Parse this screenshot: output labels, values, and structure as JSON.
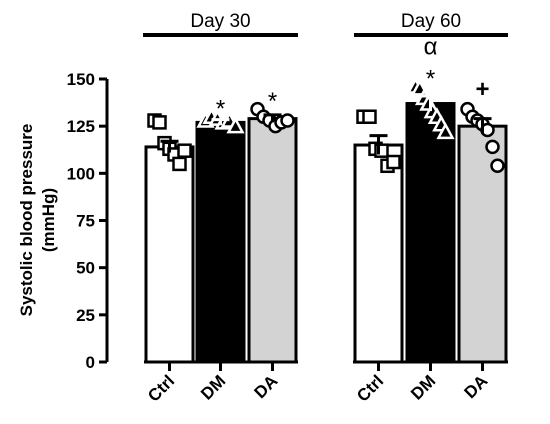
{
  "chart_data": {
    "type": "bar",
    "ylabel_line1": "Systolic blood pressure",
    "ylabel_line2": "(mmHg)",
    "ylim": [
      0,
      150
    ],
    "yticks": [
      0,
      25,
      50,
      75,
      100,
      125,
      150
    ],
    "groups": [
      {
        "name": "Day 30",
        "bars": [
          {
            "category": "Ctrl",
            "value": 114,
            "sem": 3,
            "fill": "#ffffff",
            "marker": "square",
            "points": [
              128,
              127,
              116,
              113,
              110,
              105,
              112
            ],
            "annotations": []
          },
          {
            "category": "DM",
            "value": 127,
            "sem": 1.5,
            "fill": "#000000",
            "marker": "triangle",
            "points": [
              128,
              130,
              129,
              127,
              128,
              125
            ],
            "annotations": [
              "*"
            ]
          },
          {
            "category": "DA",
            "value": 129,
            "sem": 2,
            "fill": "#d3d3d3",
            "marker": "circle",
            "points": [
              134,
              130,
              128,
              125,
              127,
              128
            ],
            "annotations": [
              "*"
            ]
          }
        ]
      },
      {
        "name": "Day 60",
        "bars": [
          {
            "category": "Ctrl",
            "value": 115,
            "sem": 5,
            "fill": "#ffffff",
            "marker": "square",
            "points": [
              130,
              130,
              113,
              112,
              104,
              106
            ],
            "annotations": []
          },
          {
            "category": "DM",
            "value": 137,
            "sem": 4,
            "fill": "#000000",
            "marker": "triangle",
            "points": [
              146,
              145,
              140,
              137,
              133,
              130,
              126,
              122
            ],
            "annotations": [
              "*",
              "α"
            ]
          },
          {
            "category": "DA",
            "value": 125,
            "sem": 4,
            "fill": "#d3d3d3",
            "marker": "circle",
            "points": [
              134,
              130,
              128,
              126,
              123,
              114,
              104
            ],
            "annotations": [
              "+"
            ]
          }
        ]
      }
    ]
  }
}
